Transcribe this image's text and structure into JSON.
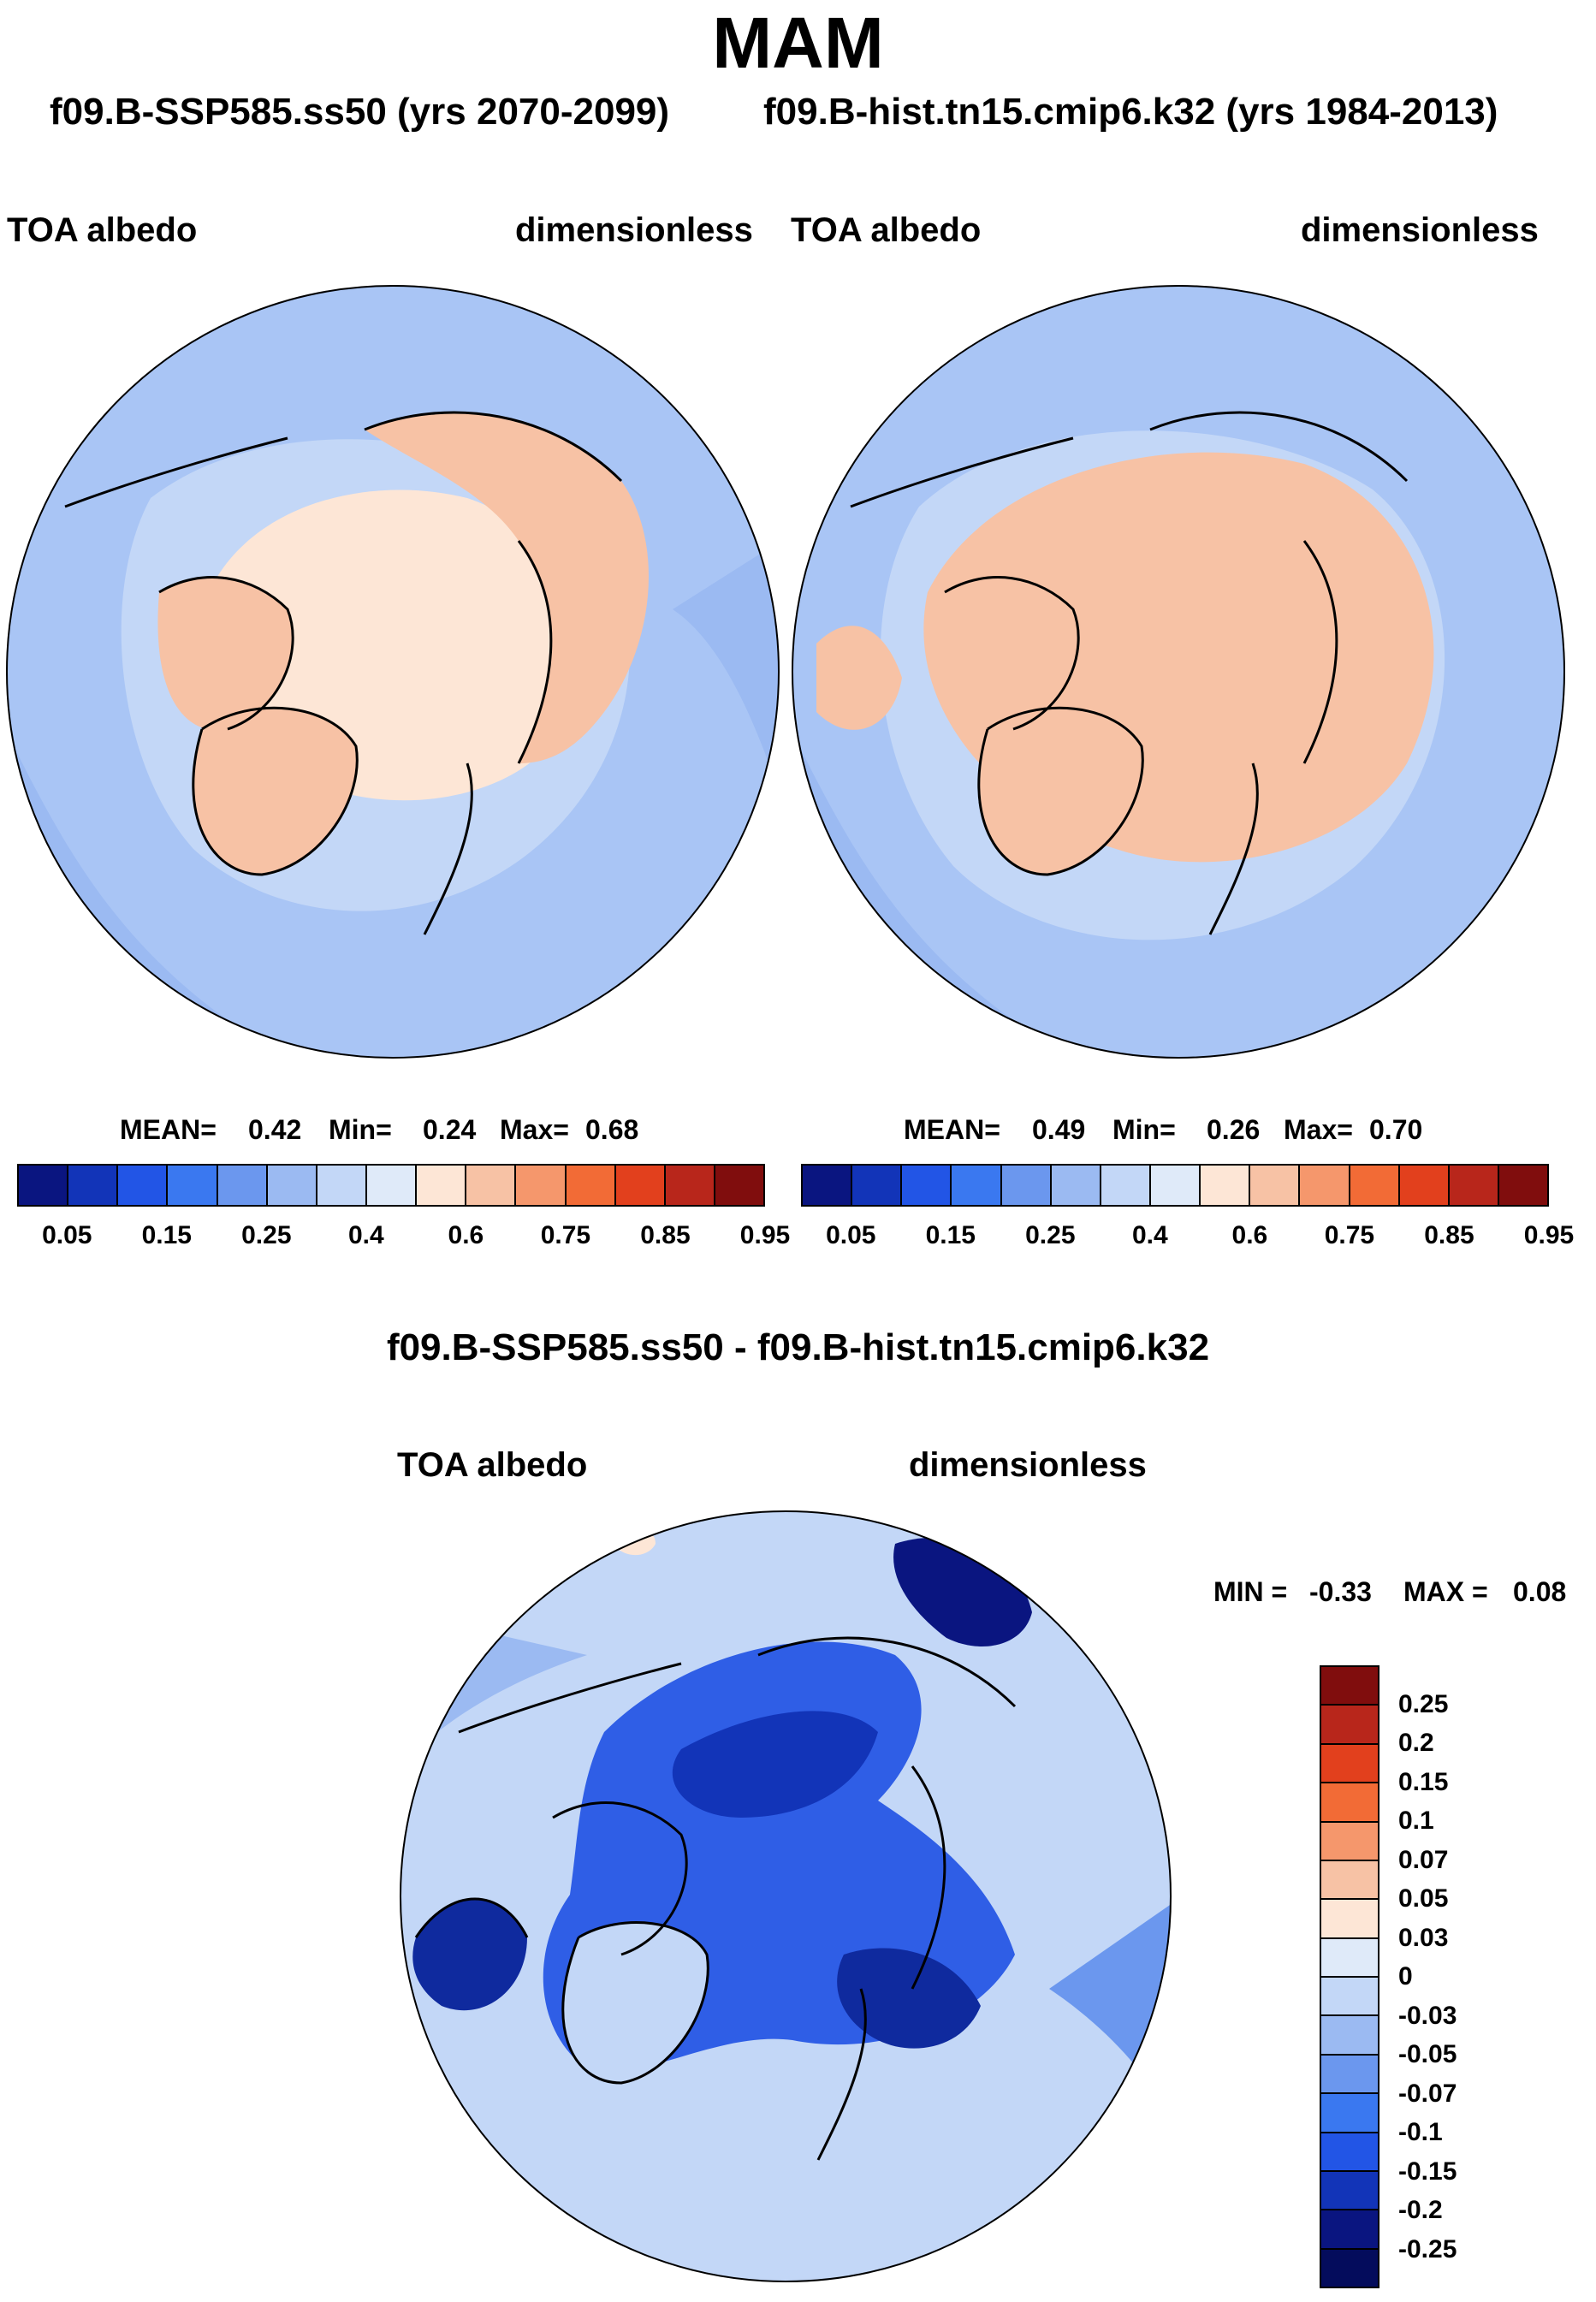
{
  "title": "MAM",
  "subtitle_left": "f09.B-SSP585.ss50 (yrs 2070-2099)",
  "subtitle_right": "f09.B-hist.tn15.cmip6.k32 (yrs 1984-2013)",
  "diff_title": "f09.B-SSP585.ss50 - f09.B-hist.tn15.cmip6.k32",
  "chart_data": [
    {
      "type": "heatmap",
      "projection": "north polar stereographic",
      "variable": "TOA albedo",
      "units": "dimensionless",
      "stats": {
        "mean_label": "MEAN=",
        "mean": "0.42",
        "min_label": "Min=",
        "min": "0.24",
        "max_label": "Max=",
        "max": "0.68"
      },
      "colorbar_ticks": [
        "0.05",
        "0.15",
        "0.25",
        "0.4",
        "0.6",
        "0.75",
        "0.85",
        "0.95"
      ]
    },
    {
      "type": "heatmap",
      "projection": "north polar stereographic",
      "variable": "TOA albedo",
      "units": "dimensionless",
      "stats": {
        "mean_label": "MEAN=",
        "mean": "0.49",
        "min_label": "Min=",
        "min": "0.26",
        "max_label": "Max=",
        "max": "0.70"
      },
      "colorbar_ticks": [
        "0.05",
        "0.15",
        "0.25",
        "0.4",
        "0.6",
        "0.75",
        "0.85",
        "0.95"
      ]
    },
    {
      "type": "heatmap",
      "projection": "north polar stereographic",
      "variable": "TOA albedo",
      "units": "dimensionless",
      "stats": {
        "min_label": "MIN =",
        "min": "-0.33",
        "max_label": "MAX =",
        "max": "0.08"
      },
      "colorbar_ticks": [
        "0.25",
        "0.2",
        "0.15",
        "0.1",
        "0.07",
        "0.05",
        "0.03",
        "0",
        "-0.03",
        "-0.05",
        "-0.07",
        "-0.1",
        "-0.15",
        "-0.2",
        "-0.25"
      ]
    }
  ],
  "colors": {
    "abs_scale": [
      "#0a1580",
      "#1234b8",
      "#2255e6",
      "#3a78f0",
      "#6b97ee",
      "#9bbaf2",
      "#c3d7f7",
      "#dfeaf9",
      "#fde6d6",
      "#f7c2a5",
      "#f5976c",
      "#f26b36",
      "#e2401d",
      "#b8261b",
      "#800d0d"
    ],
    "diff_scale": [
      "#800d0d",
      "#b8261b",
      "#e2401d",
      "#f26b36",
      "#f5976c",
      "#f7c2a5",
      "#fde6d6",
      "#dfeaf9",
      "#c3d7f7",
      "#9bbaf2",
      "#6b97ee",
      "#3a78f0",
      "#2255e6",
      "#1234b8",
      "#0a1580",
      "#040c5c"
    ],
    "ocean_abs": "#a9c5f5",
    "land_abs": "#f8c9ad",
    "ice_abs": "#fde6d6",
    "ocean_diff": "#c3d7f7",
    "ice_diff": "#2f5ee6",
    "deep_diff": "#0f2a9e"
  }
}
